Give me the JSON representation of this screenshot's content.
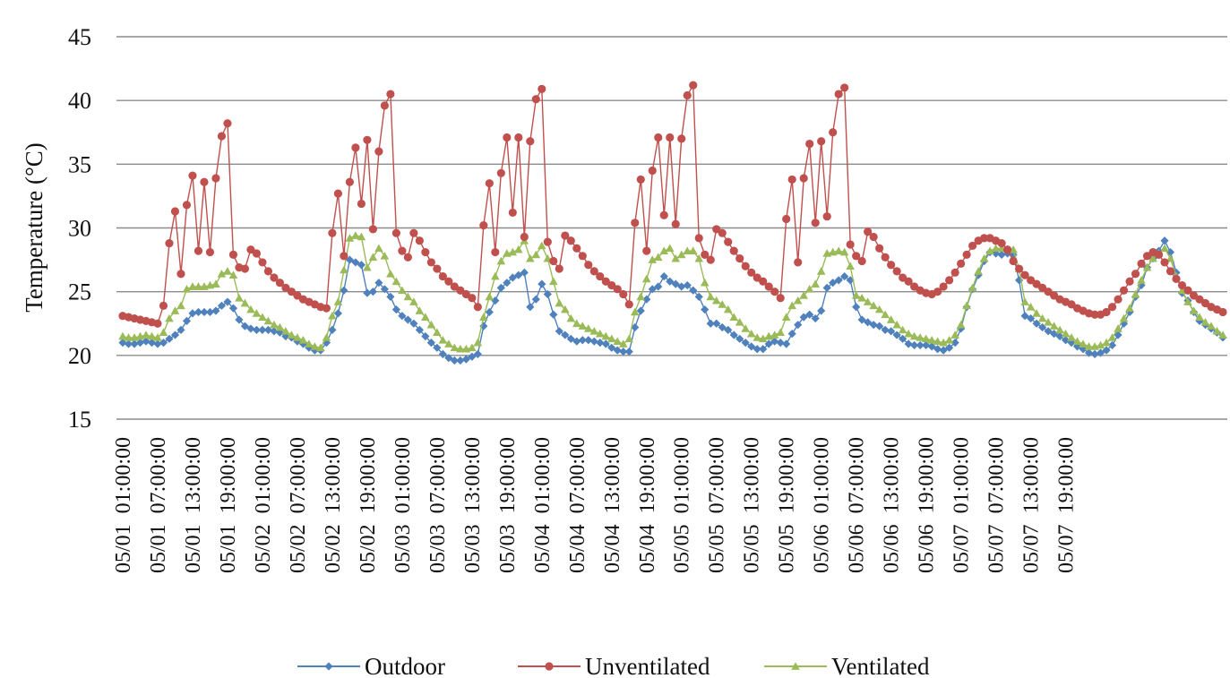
{
  "chart_data": {
    "type": "line",
    "ylabel": "Temperature (°C)",
    "xlabel": "",
    "ylim": [
      15,
      45
    ],
    "y_ticks": [
      "15",
      "20",
      "25",
      "30",
      "35",
      "40",
      "45"
    ],
    "grid": true,
    "legend_position": "bottom",
    "x_start": "05/01 01:00:00",
    "x_step_hours": 1,
    "x_tick_labels": [
      "05/01  01:00:00",
      "05/01  07:00:00",
      "05/01  13:00:00",
      "05/01  19:00:00",
      "05/02  01:00:00",
      "05/02  07:00:00",
      "05/02  13:00:00",
      "05/02  19:00:00",
      "05/03  01:00:00",
      "05/03  07:00:00",
      "05/03  13:00:00",
      "05/03  19:00:00",
      "05/04  01:00:00",
      "05/04  07:00:00",
      "05/04  13:00:00",
      "05/04  19:00:00",
      "05/05  01:00:00",
      "05/05  07:00:00",
      "05/05  13:00:00",
      "05/05  19:00:00",
      "05/06  01:00:00",
      "05/06  07:00:00",
      "05/06  13:00:00",
      "05/06  19:00:00",
      "05/07  01:00:00",
      "05/07  07:00:00",
      "05/07  13:00:00",
      "05/07  19:00:00"
    ],
    "series": [
      {
        "name": "Outdoor",
        "color": "#4f81bd",
        "marker": "diamond",
        "values": [
          21.0,
          20.9,
          20.9,
          21.0,
          21.1,
          21.0,
          20.9,
          21.0,
          21.3,
          21.6,
          22.0,
          22.7,
          23.3,
          23.4,
          23.4,
          23.4,
          23.5,
          23.9,
          24.2,
          23.7,
          22.8,
          22.3,
          22.1,
          22.0,
          22.0,
          22.0,
          21.9,
          21.8,
          21.5,
          21.4,
          21.1,
          20.9,
          20.6,
          20.4,
          20.4,
          21.0,
          22.0,
          23.3,
          25.1,
          27.5,
          27.3,
          27.1,
          24.9,
          25.0,
          25.7,
          25.2,
          24.6,
          23.6,
          23.1,
          22.8,
          22.5,
          22.0,
          21.5,
          21.0,
          20.6,
          20.1,
          19.8,
          19.6,
          19.6,
          19.7,
          19.9,
          20.1,
          22.3,
          23.4,
          24.3,
          25.3,
          25.7,
          26.1,
          26.3,
          26.5,
          23.8,
          24.4,
          25.6,
          24.8,
          23.2,
          21.9,
          21.6,
          21.3,
          21.1,
          21.2,
          21.2,
          21.1,
          21.0,
          20.9,
          20.6,
          20.4,
          20.3,
          20.3,
          22.2,
          23.5,
          24.4,
          25.2,
          25.4,
          26.2,
          25.8,
          25.6,
          25.4,
          25.5,
          25.1,
          24.6,
          23.6,
          22.5,
          22.5,
          22.2,
          22.0,
          21.6,
          21.3,
          21.0,
          20.7,
          20.5,
          20.5,
          20.9,
          21.1,
          21.0,
          20.9,
          21.7,
          22.4,
          23.0,
          23.2,
          22.9,
          23.5,
          25.3,
          25.7,
          25.9,
          26.2,
          25.9,
          23.8,
          22.8,
          22.6,
          22.4,
          22.3,
          22.0,
          21.9,
          21.6,
          21.3,
          20.9,
          20.8,
          20.8,
          20.8,
          20.7,
          20.5,
          20.4,
          20.6,
          21.0,
          22.1,
          23.8,
          25.2,
          26.3,
          27.4,
          28.1,
          28.0,
          27.9,
          28.0,
          27.9,
          25.9,
          23.1,
          22.9,
          22.5,
          22.2,
          21.9,
          21.7,
          21.5,
          21.2,
          21.0,
          20.7,
          20.5,
          20.2,
          20.1,
          20.2,
          20.4,
          20.8,
          21.6,
          22.5,
          23.4,
          24.6,
          25.5,
          26.9,
          27.6,
          28.2,
          29.0,
          28.1,
          26.5,
          24.9,
          24.3,
          23.4,
          22.7,
          22.4,
          22.1,
          21.8,
          21.4
        ]
      },
      {
        "name": "Unventilated",
        "color": "#c0504d",
        "marker": "circle",
        "values": [
          23.1,
          23.0,
          22.9,
          22.8,
          22.7,
          22.6,
          22.5,
          23.9,
          28.8,
          31.3,
          26.4,
          31.8,
          34.1,
          28.2,
          33.6,
          28.1,
          33.9,
          37.2,
          38.2,
          27.9,
          26.9,
          26.8,
          28.3,
          28.0,
          27.3,
          26.6,
          26.1,
          25.7,
          25.3,
          25.0,
          24.7,
          24.4,
          24.2,
          24.0,
          23.8,
          23.7,
          29.6,
          32.7,
          27.8,
          33.6,
          36.3,
          31.9,
          36.9,
          29.9,
          36.0,
          39.6,
          40.5,
          29.6,
          28.2,
          27.7,
          29.6,
          29.0,
          28.1,
          27.3,
          26.8,
          26.2,
          25.8,
          25.4,
          25.1,
          24.8,
          24.5,
          23.8,
          30.2,
          33.5,
          28.1,
          34.3,
          37.1,
          31.2,
          37.1,
          29.3,
          36.8,
          40.1,
          40.9,
          28.9,
          27.4,
          26.8,
          29.4,
          29.0,
          28.4,
          27.8,
          27.1,
          26.6,
          26.2,
          25.8,
          25.5,
          25.2,
          24.8,
          24.0,
          30.4,
          33.8,
          28.2,
          34.5,
          37.1,
          31.0,
          37.1,
          30.3,
          37.0,
          40.4,
          41.2,
          29.2,
          27.9,
          27.5,
          29.9,
          29.6,
          28.9,
          28.2,
          27.6,
          27.0,
          26.5,
          26.1,
          25.8,
          25.4,
          25.0,
          24.5,
          30.7,
          33.8,
          27.3,
          33.9,
          36.6,
          30.4,
          36.8,
          30.9,
          37.5,
          40.5,
          41.0,
          28.7,
          27.8,
          27.4,
          29.7,
          29.3,
          28.4,
          27.7,
          27.1,
          26.6,
          26.1,
          25.8,
          25.4,
          25.1,
          24.9,
          24.8,
          25.0,
          25.4,
          25.9,
          26.5,
          27.2,
          27.9,
          28.6,
          29.0,
          29.2,
          29.2,
          29.0,
          28.8,
          28.3,
          27.4,
          26.8,
          26.3,
          25.9,
          25.6,
          25.3,
          25.0,
          24.7,
          24.4,
          24.2,
          24.0,
          23.7,
          23.5,
          23.3,
          23.2,
          23.2,
          23.4,
          23.8,
          24.4,
          25.1,
          25.8,
          26.4,
          27.2,
          27.8,
          28.1,
          27.9,
          27.3,
          26.6,
          26.0,
          25.5,
          25.1,
          24.7,
          24.4,
          24.1,
          23.8,
          23.6,
          23.4
        ]
      },
      {
        "name": "Ventilated",
        "color": "#9bbb59",
        "marker": "triangle",
        "values": [
          21.5,
          21.4,
          21.4,
          21.5,
          21.6,
          21.5,
          21.4,
          21.8,
          22.9,
          23.5,
          23.9,
          25.2,
          25.4,
          25.4,
          25.4,
          25.5,
          25.6,
          26.4,
          26.6,
          26.3,
          24.5,
          24.1,
          23.6,
          23.3,
          23.0,
          22.7,
          22.4,
          22.2,
          21.9,
          21.6,
          21.4,
          21.2,
          20.9,
          20.7,
          20.6,
          21.4,
          23.1,
          24.2,
          26.7,
          29.2,
          29.4,
          29.3,
          26.9,
          27.7,
          28.4,
          27.8,
          26.4,
          25.8,
          25.1,
          24.6,
          24.2,
          23.5,
          23.0,
          22.4,
          21.8,
          21.2,
          20.9,
          20.6,
          20.5,
          20.5,
          20.6,
          21.0,
          23.0,
          24.6,
          26.2,
          27.4,
          28.0,
          28.1,
          28.3,
          29.0,
          27.6,
          27.9,
          28.6,
          27.6,
          25.8,
          24.1,
          23.6,
          22.9,
          22.5,
          22.3,
          22.1,
          21.9,
          21.7,
          21.5,
          21.3,
          21.1,
          20.9,
          21.3,
          23.4,
          24.6,
          26.0,
          27.5,
          27.7,
          28.2,
          28.4,
          27.6,
          27.9,
          28.2,
          28.2,
          27.6,
          25.7,
          24.6,
          24.3,
          24.0,
          23.6,
          23.0,
          22.6,
          22.1,
          21.7,
          21.4,
          21.3,
          21.5,
          21.6,
          21.8,
          23.0,
          23.9,
          24.3,
          24.7,
          25.2,
          25.6,
          26.6,
          28.0,
          28.1,
          28.2,
          28.1,
          27.0,
          24.7,
          24.5,
          24.2,
          23.9,
          23.6,
          23.2,
          22.8,
          22.4,
          22.0,
          21.7,
          21.5,
          21.4,
          21.3,
          21.2,
          21.1,
          21.0,
          21.2,
          21.6,
          22.4,
          23.9,
          25.3,
          26.6,
          27.6,
          28.2,
          28.4,
          28.4,
          28.3,
          28.3,
          26.8,
          24.2,
          23.8,
          23.3,
          22.9,
          22.6,
          22.3,
          22.0,
          21.7,
          21.4,
          21.1,
          20.9,
          20.7,
          20.7,
          20.8,
          21.0,
          21.4,
          22.1,
          22.9,
          23.7,
          24.8,
          25.9,
          26.9,
          27.6,
          28.0,
          28.4,
          27.6,
          26.2,
          25.1,
          24.2,
          23.5,
          23.0,
          22.6,
          22.3,
          21.9,
          21.6
        ]
      }
    ]
  }
}
